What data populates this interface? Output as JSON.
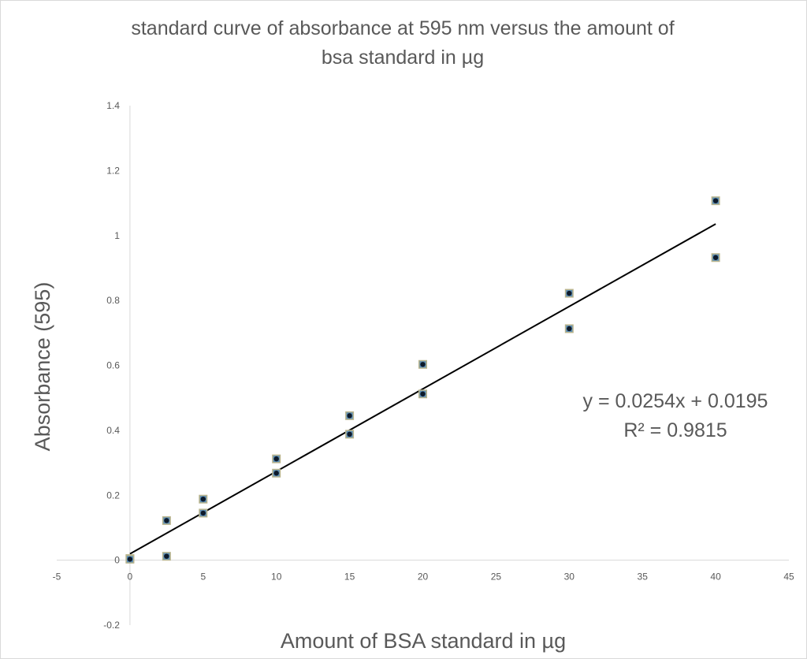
{
  "chart_data": {
    "type": "scatter",
    "title_lines": [
      "standard curve of absorbance at 595 nm versus the amount of",
      "bsa standard in µg"
    ],
    "xlabel": "Amount of  BSA standard in µg",
    "ylabel": "Absorbance (595)",
    "xlim": [
      -5,
      45
    ],
    "ylim": [
      -0.2,
      1.4
    ],
    "x_ticks": [
      -5,
      0,
      5,
      10,
      15,
      20,
      25,
      30,
      35,
      40,
      45
    ],
    "y_ticks": [
      -0.2,
      0,
      0.2,
      0.4,
      0.6,
      0.8,
      1,
      1.2,
      1.4
    ],
    "grid": false,
    "points": [
      {
        "x": 0,
        "y": 0.005
      },
      {
        "x": 0,
        "y": 0.003
      },
      {
        "x": 2.5,
        "y": 0.122
      },
      {
        "x": 2.5,
        "y": 0.012
      },
      {
        "x": 5,
        "y": 0.188
      },
      {
        "x": 5,
        "y": 0.145
      },
      {
        "x": 10,
        "y": 0.312
      },
      {
        "x": 10,
        "y": 0.268
      },
      {
        "x": 15,
        "y": 0.445
      },
      {
        "x": 15,
        "y": 0.388
      },
      {
        "x": 20,
        "y": 0.603
      },
      {
        "x": 20,
        "y": 0.512
      },
      {
        "x": 30,
        "y": 0.822
      },
      {
        "x": 30,
        "y": 0.713
      },
      {
        "x": 40,
        "y": 1.107
      },
      {
        "x": 40,
        "y": 0.932
      }
    ],
    "trendline": {
      "slope": 0.0254,
      "intercept": 0.0195,
      "x_range": [
        0,
        40
      ]
    },
    "equation_text": "y = 0.0254x + 0.0195",
    "r2_text": "R² = 0.9815",
    "colors": {
      "marker_outer": "#b9b48c",
      "marker_mid": "#5b8fb9",
      "marker_inner": "#0d1a2b",
      "trendline": "#000000",
      "axis": "#d9d9d9",
      "text": "#595959"
    }
  }
}
